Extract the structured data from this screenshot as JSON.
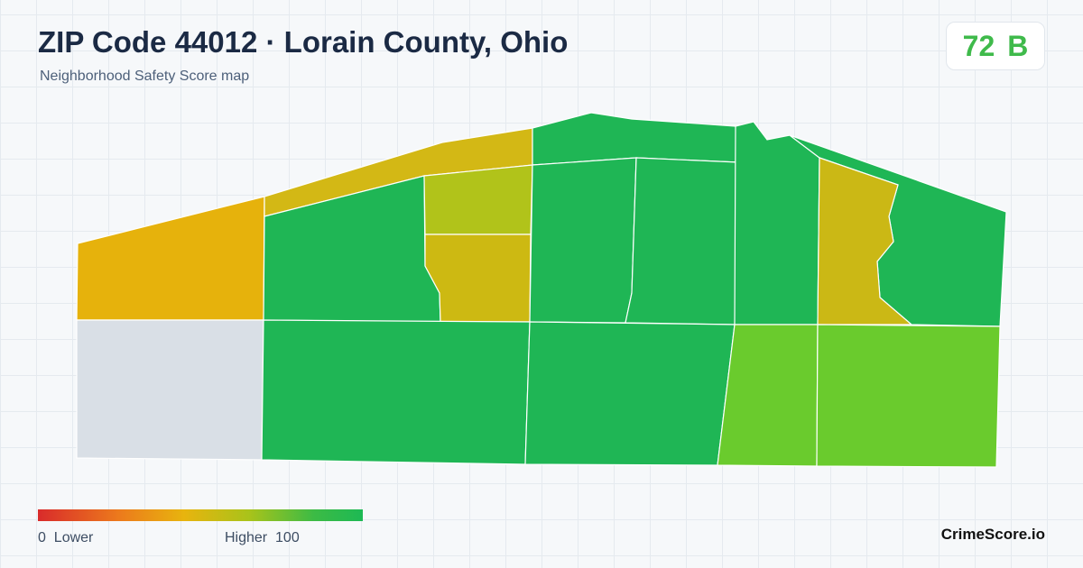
{
  "header": {
    "title": "ZIP Code 44012 · Lorain County, Ohio",
    "subtitle": "Neighborhood Safety Score map"
  },
  "score": {
    "value": 72,
    "grade": "B"
  },
  "legend": {
    "min": 0,
    "min_label": "Lower",
    "max_label": "Higher",
    "max": 100
  },
  "brand": "CrimeScore.io"
}
